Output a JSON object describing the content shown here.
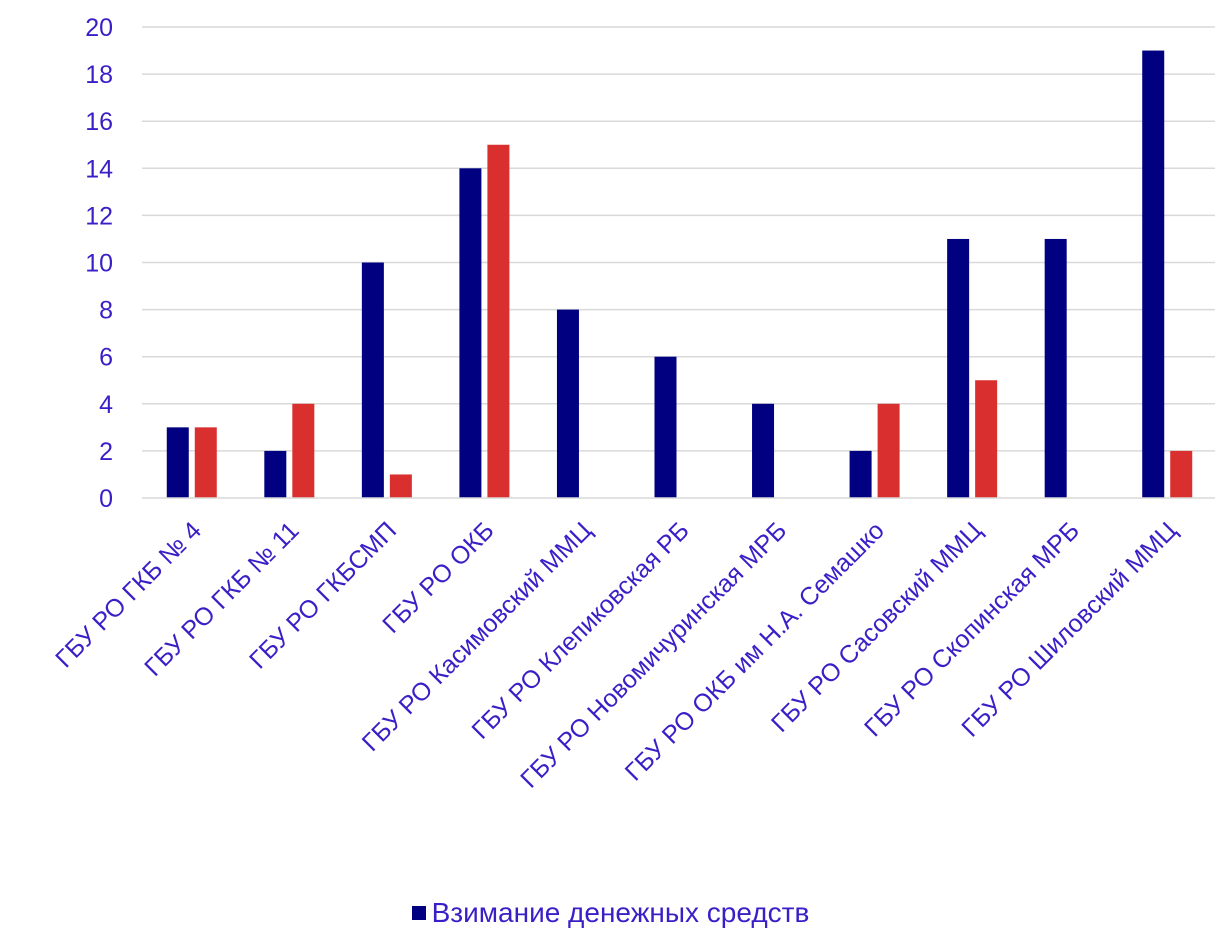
{
  "chart_data": {
    "type": "bar",
    "title": "",
    "xlabel": "",
    "ylabel": "",
    "ylim": [
      0,
      20
    ],
    "yticks": [
      0,
      2,
      4,
      6,
      8,
      10,
      12,
      14,
      16,
      18,
      20
    ],
    "grid": true,
    "legend_position": "bottom",
    "categories": [
      "ГБУ РО ГКБ № 4",
      "ГБУ РО ГКБ № 11",
      "ГБУ РО ГКБСМП",
      "ГБУ РО ОКБ",
      "ГБУ РО Касимовский ММЦ",
      "ГБУ РО Клепиковская РБ",
      "ГБУ РО Новомичуринская МРБ",
      "ГБУ РО ОКБ им Н.А. Семашко",
      "ГБУ РО Сасовский ММЦ",
      "ГБУ РО Скопинская МРБ",
      "ГБУ РО Шиловский ММЦ"
    ],
    "series": [
      {
        "name": "Взимание денежных средств",
        "color": "#000080",
        "values": [
          3,
          2,
          10,
          14,
          8,
          6,
          4,
          2,
          11,
          11,
          19
        ]
      },
      {
        "color": "#d9302f",
        "values": [
          3,
          4,
          1,
          15,
          0,
          0,
          0,
          4,
          5,
          0,
          2
        ]
      }
    ],
    "text_color": "#3a1fc7",
    "grid_color": "#d9d9d9"
  }
}
